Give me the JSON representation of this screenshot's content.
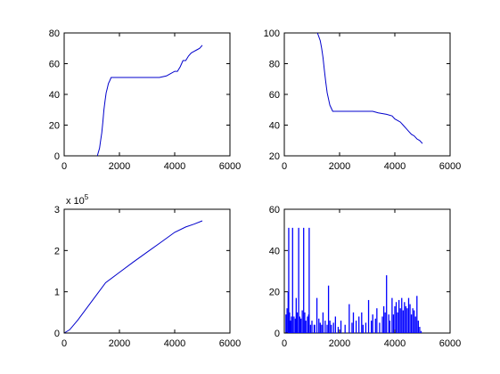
{
  "chart_data": [
    {
      "type": "line",
      "title": "",
      "xlabel": "",
      "ylabel": "",
      "xlim": [
        0,
        6000
      ],
      "ylim": [
        0,
        80
      ],
      "xticks": [
        0,
        2000,
        4000,
        6000
      ],
      "yticks": [
        0,
        20,
        40,
        60,
        80
      ],
      "exponent": "",
      "color": "#0000cc",
      "x": [
        1200,
        1280,
        1320,
        1360,
        1400,
        1440,
        1480,
        1520,
        1560,
        1600,
        1650,
        1700,
        1760,
        1800,
        2000,
        2400,
        2800,
        3200,
        3450,
        3700,
        3800,
        4000,
        4100,
        4200,
        4300,
        4400,
        4500,
        4600,
        4700,
        4800,
        4900,
        5000
      ],
      "y": [
        0,
        5,
        10,
        15,
        22,
        30,
        36,
        41,
        44,
        47,
        49,
        51,
        51,
        51,
        51,
        51,
        51,
        51,
        51,
        52,
        53,
        55,
        55,
        58,
        62,
        62,
        65,
        67,
        68,
        69,
        70,
        72
      ]
    },
    {
      "type": "line",
      "title": "",
      "xlabel": "",
      "ylabel": "",
      "xlim": [
        0,
        6000
      ],
      "ylim": [
        20,
        100
      ],
      "xticks": [
        0,
        2000,
        4000,
        6000
      ],
      "yticks": [
        20,
        40,
        60,
        80,
        100
      ],
      "exponent": "",
      "color": "#0000cc",
      "x": [
        1200,
        1300,
        1350,
        1400,
        1450,
        1500,
        1550,
        1600,
        1650,
        1700,
        1750,
        1800,
        2000,
        2400,
        2800,
        3200,
        3400,
        3700,
        3900,
        4000,
        4100,
        4200,
        4300,
        4400,
        4500,
        4600,
        4700,
        4800,
        4900,
        5000
      ],
      "y": [
        100,
        95,
        90,
        84,
        76,
        68,
        61,
        57,
        53,
        51,
        49,
        49,
        49,
        49,
        49,
        49,
        48,
        47,
        46,
        44,
        43,
        42,
        40,
        38,
        36,
        34,
        33,
        31,
        30,
        28
      ]
    },
    {
      "type": "line",
      "title": "",
      "xlabel": "",
      "ylabel": "",
      "xlim": [
        0,
        6000
      ],
      "ylim": [
        0,
        3
      ],
      "xticks": [
        0,
        2000,
        4000,
        6000
      ],
      "yticks": [
        0,
        1,
        2,
        3
      ],
      "exponent": "x 10^5",
      "exponent_base": "x 10",
      "exponent_power": "5",
      "color": "#0000cc",
      "x": [
        0,
        200,
        500,
        1000,
        1500,
        2000,
        2500,
        3000,
        3500,
        4000,
        4400,
        4700,
        5000
      ],
      "y": [
        0,
        0.08,
        0.32,
        0.77,
        1.22,
        1.47,
        1.72,
        1.96,
        2.2,
        2.44,
        2.57,
        2.64,
        2.72
      ]
    },
    {
      "type": "bar",
      "title": "",
      "xlabel": "",
      "ylabel": "",
      "xlim": [
        0,
        6000
      ],
      "ylim": [
        0,
        60
      ],
      "xticks": [
        0,
        2000,
        4000,
        6000
      ],
      "yticks": [
        0,
        20,
        40,
        60
      ],
      "exponent": "",
      "color": "#0000ff",
      "x": [
        60,
        100,
        140,
        160,
        190,
        230,
        260,
        300,
        350,
        400,
        430,
        470,
        520,
        560,
        600,
        650,
        700,
        740,
        780,
        840,
        880,
        900,
        950,
        1000,
        1080,
        1100,
        1180,
        1250,
        1300,
        1350,
        1400,
        1480,
        1550,
        1600,
        1650,
        1700,
        1780,
        1850,
        1950,
        2050,
        2200,
        2350,
        2450,
        2500,
        2600,
        2700,
        2800,
        2850,
        2950,
        3050,
        3150,
        3200,
        3300,
        3350,
        3450,
        3550,
        3600,
        3650,
        3700,
        3780,
        3820,
        3900,
        3950,
        4000,
        4050,
        4100,
        4150,
        4200,
        4250,
        4300,
        4350,
        4400,
        4450,
        4500,
        4550,
        4600,
        4650,
        4700,
        4750,
        4800,
        4850,
        4900,
        4950
      ],
      "y": [
        9,
        12,
        20,
        51,
        10,
        6,
        8,
        51,
        8,
        7,
        17,
        10,
        51,
        8,
        7,
        11,
        51,
        10,
        6,
        8,
        9,
        51,
        4,
        6,
        4,
        4,
        17,
        7,
        5,
        4,
        10,
        6,
        4,
        23,
        6,
        4,
        5,
        8,
        3,
        6,
        4,
        14,
        5,
        10,
        6,
        8,
        10,
        4,
        5,
        16,
        6,
        9,
        7,
        12,
        5,
        8,
        13,
        10,
        28,
        9,
        6,
        17,
        9,
        13,
        15,
        10,
        16,
        12,
        17,
        11,
        15,
        13,
        12,
        17,
        14,
        9,
        12,
        11,
        8,
        18,
        6,
        3,
        1
      ]
    }
  ]
}
